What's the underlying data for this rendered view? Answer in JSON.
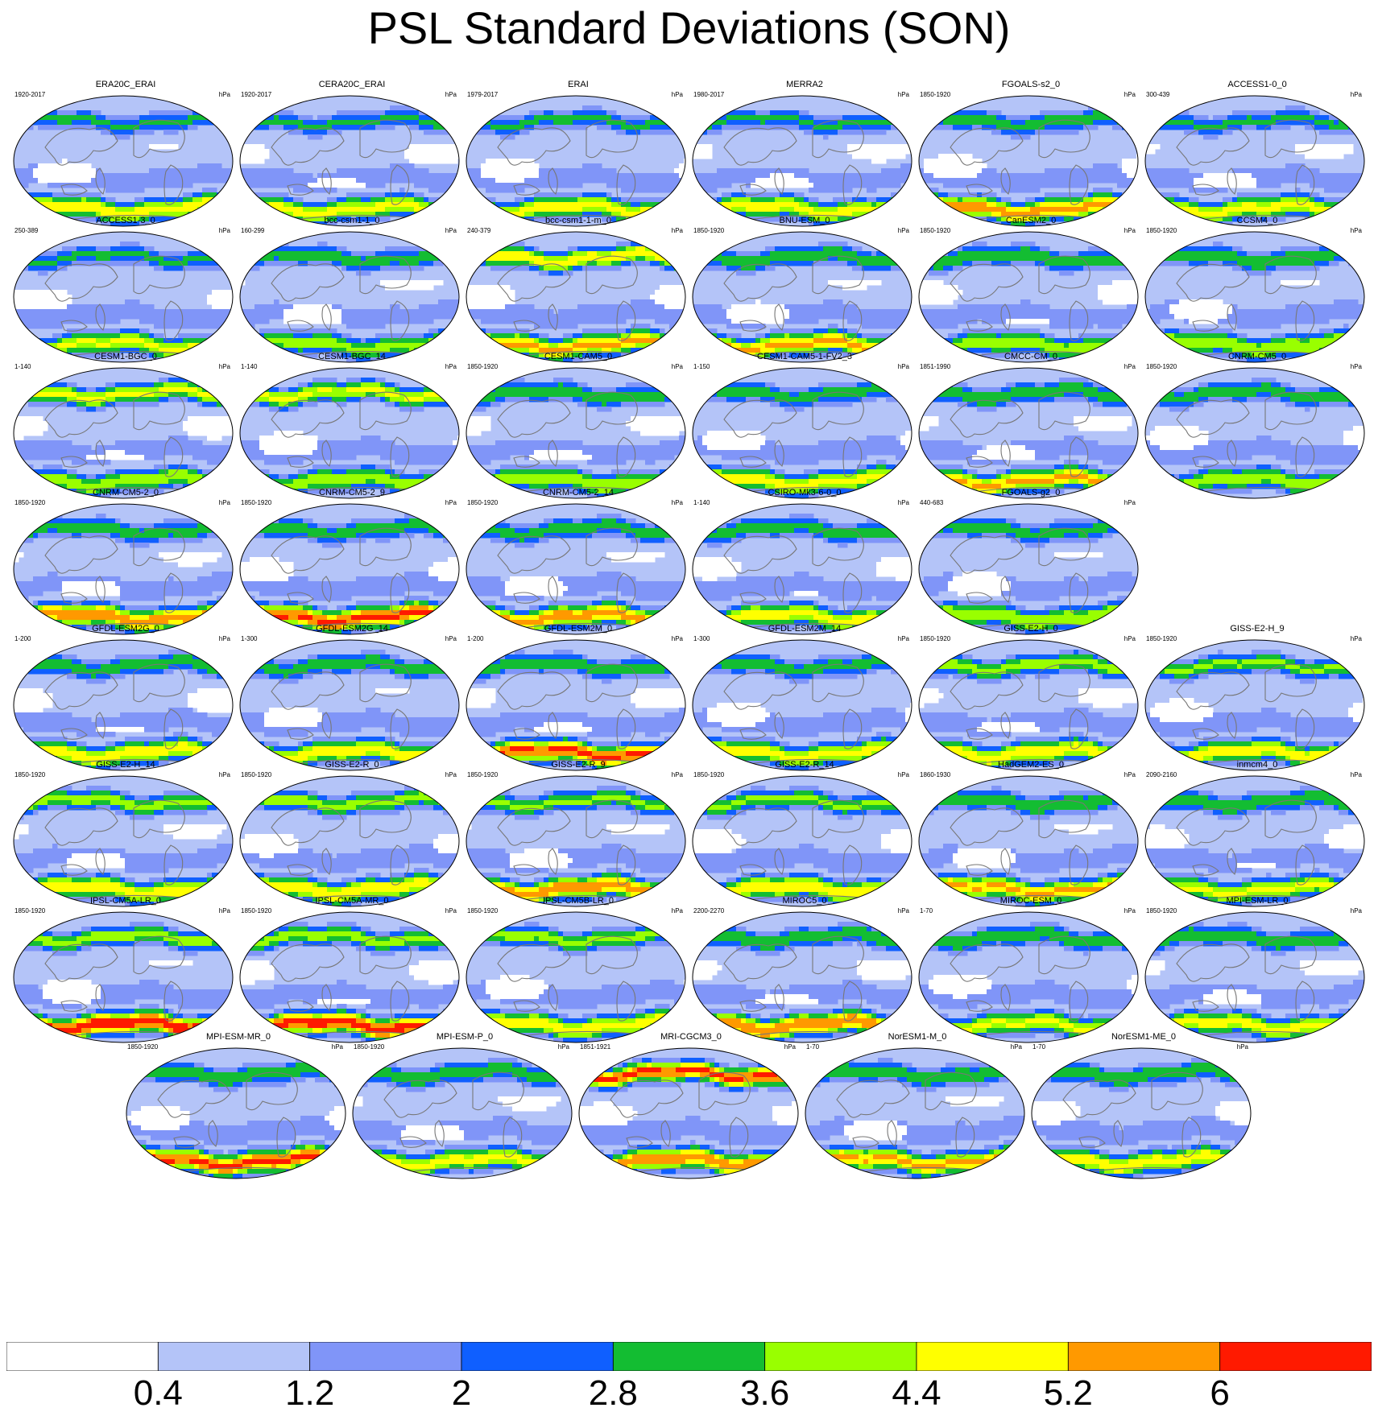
{
  "title": "PSL Standard Deviations (SON)",
  "chart_data": {
    "type": "heatmap",
    "title": "PSL Standard Deviations (SON)",
    "projection": "global robinson-like ellipse, continent outlines",
    "units": "hPa",
    "colorbar": {
      "levels": [
        "0.4",
        "1.2",
        "2",
        "2.8",
        "3.6",
        "4.4",
        "5.2",
        "6"
      ],
      "colors": [
        "#ffffff",
        "#b4c4f8",
        "#8095f8",
        "#0f5fff",
        "#13bd32",
        "#99ff00",
        "#ffff00",
        "#ff9900",
        "#ff1a00"
      ]
    },
    "panels": [
      {
        "name": "ERA20C_ERAI",
        "years": "1920-2017",
        "unit": "hPa",
        "south_max": 5.0,
        "north_max": 3.0
      },
      {
        "name": "CERA20C_ERAI",
        "years": "1920-2017",
        "unit": "hPa",
        "south_max": 4.8,
        "north_max": 3.0
      },
      {
        "name": "ERAI",
        "years": "1979-2017",
        "unit": "hPa",
        "south_max": 4.8,
        "north_max": 3.0
      },
      {
        "name": "MERRA2",
        "years": "1980-2017",
        "unit": "hPa",
        "south_max": 4.8,
        "north_max": 3.0
      },
      {
        "name": "FGOALS-s2_0",
        "years": "1850-1920",
        "unit": "hPa",
        "south_max": 5.6,
        "north_max": 3.4
      },
      {
        "name": "ACCESS1-0_0",
        "years": "300-439",
        "unit": "hPa",
        "south_max": 4.8,
        "north_max": 3.0
      },
      {
        "name": "ACCESS1-3_0",
        "years": "250-389",
        "unit": "hPa",
        "south_max": 4.6,
        "north_max": 3.0
      },
      {
        "name": "bcc-csm1-1_0",
        "years": "160-299",
        "unit": "hPa",
        "south_max": 4.0,
        "north_max": 3.4
      },
      {
        "name": "bcc-csm1-1-m_0",
        "years": "240-379",
        "unit": "hPa",
        "south_max": 5.4,
        "north_max": 5.0
      },
      {
        "name": "BNU-ESM_0",
        "years": "1850-1920",
        "unit": "hPa",
        "south_max": 5.4,
        "north_max": 3.6
      },
      {
        "name": "CanESM2_0",
        "years": "1850-1920",
        "unit": "hPa",
        "south_max": 4.2,
        "north_max": 3.6
      },
      {
        "name": "CCSM4_0",
        "years": "1850-1920",
        "unit": "hPa",
        "south_max": 4.4,
        "north_max": 3.6
      },
      {
        "name": "CESM1-BGC_0",
        "years": "1-140",
        "unit": "hPa",
        "south_max": 4.2,
        "north_max": 4.6
      },
      {
        "name": "CESM1-BGC_14",
        "years": "1-140",
        "unit": "hPa",
        "south_max": 4.2,
        "north_max": 4.6
      },
      {
        "name": "CESM1-CAM5_0",
        "years": "1850-1920",
        "unit": "hPa",
        "south_max": 4.4,
        "north_max": 3.6
      },
      {
        "name": "CESM1-CAM5-1-FV2_3",
        "years": "1-150",
        "unit": "hPa",
        "south_max": 4.8,
        "north_max": 3.4
      },
      {
        "name": "CMCC-CM_0",
        "years": "1851-1990",
        "unit": "hPa",
        "south_max": 5.4,
        "north_max": 3.6
      },
      {
        "name": "CNRM-CM5_0",
        "years": "1850-1920",
        "unit": "hPa",
        "south_max": 4.2,
        "north_max": 3.4
      },
      {
        "name": "CNRM-CM5-2_0",
        "years": "1850-1920",
        "unit": "hPa",
        "south_max": 5.8,
        "north_max": 3.4
      },
      {
        "name": "CNRM-CM5-2_9",
        "years": "1850-1920",
        "unit": "hPa",
        "south_max": 6.2,
        "north_max": 3.4
      },
      {
        "name": "CNRM-CM5-2_14",
        "years": "1850-1920",
        "unit": "hPa",
        "south_max": 5.6,
        "north_max": 3.4
      },
      {
        "name": "CSIRO-Mk3-6-0_0",
        "years": "1-140",
        "unit": "hPa",
        "south_max": 4.8,
        "north_max": 3.4
      },
      {
        "name": "FGOALS-g2_0",
        "years": "440-683",
        "unit": "hPa",
        "south_max": 4.4,
        "north_max": 3.4
      },
      {
        "name": "GFDL-ESM2G_0",
        "years": "1-200",
        "unit": "hPa",
        "south_max": 5.0,
        "north_max": 3.4
      },
      {
        "name": "GFDL-ESM2G_14",
        "years": "1-300",
        "unit": "hPa",
        "south_max": 5.0,
        "north_max": 3.4
      },
      {
        "name": "GFDL-ESM2M_0",
        "years": "1-200",
        "unit": "hPa",
        "south_max": 6.2,
        "north_max": 3.4
      },
      {
        "name": "GFDL-ESM2M_14",
        "years": "1-300",
        "unit": "hPa",
        "south_max": 4.8,
        "north_max": 3.4
      },
      {
        "name": "GISS-E2-H_0",
        "years": "1850-1920",
        "unit": "hPa",
        "south_max": 5.0,
        "north_max": 4.0
      },
      {
        "name": "GISS-E2-H_9",
        "years": "1850-1920",
        "unit": "hPa",
        "south_max": 5.0,
        "north_max": 3.8
      },
      {
        "name": "GISS-E2-H_14",
        "years": "1850-1920",
        "unit": "hPa",
        "south_max": 5.0,
        "north_max": 4.0
      },
      {
        "name": "GISS-E2-R_0",
        "years": "1850-1920",
        "unit": "hPa",
        "south_max": 5.2,
        "north_max": 4.0
      },
      {
        "name": "GISS-E2-R_9",
        "years": "1850-1920",
        "unit": "hPa",
        "south_max": 5.8,
        "north_max": 3.8
      },
      {
        "name": "GISS-E2-R_14",
        "years": "1850-1920",
        "unit": "hPa",
        "south_max": 5.2,
        "north_max": 3.8
      },
      {
        "name": "HadGEM2-ES_0",
        "years": "1860-1930",
        "unit": "hPa",
        "south_max": 5.4,
        "north_max": 3.6
      },
      {
        "name": "inmcm4_0",
        "years": "2090-2160",
        "unit": "hPa",
        "south_max": 4.6,
        "north_max": 3.6
      },
      {
        "name": "IPSL-CM5A-LR_0",
        "years": "1850-1920",
        "unit": "hPa",
        "south_max": 6.6,
        "north_max": 4.0
      },
      {
        "name": "IPSL-CM5A-MR_0",
        "years": "1850-1920",
        "unit": "hPa",
        "south_max": 6.4,
        "north_max": 4.0
      },
      {
        "name": "IPSL-CM5B-LR_0",
        "years": "1850-1920",
        "unit": "hPa",
        "south_max": 5.0,
        "north_max": 4.0
      },
      {
        "name": "MIROC5_0",
        "years": "2200-2270",
        "unit": "hPa",
        "south_max": 6.0,
        "north_max": 3.6
      },
      {
        "name": "MIROC-ESM_0",
        "years": "1-70",
        "unit": "hPa",
        "south_max": 4.6,
        "north_max": 3.6
      },
      {
        "name": "MPI-ESM-LR_0",
        "years": "1850-1920",
        "unit": "hPa",
        "south_max": 4.8,
        "north_max": 3.6
      },
      {
        "name": "MPI-ESM-MR_0",
        "years": "1850-1920",
        "unit": "hPa",
        "south_max": 6.2,
        "north_max": 3.6
      },
      {
        "name": "MPI-ESM-P_0",
        "years": "1850-1920",
        "unit": "hPa",
        "south_max": 4.8,
        "north_max": 3.6
      },
      {
        "name": "MRI-CGCM3_0",
        "years": "1851-1921",
        "unit": "hPa",
        "south_max": 5.8,
        "north_max": 6.2
      },
      {
        "name": "NorESM1-M_0",
        "years": "1-70",
        "unit": "hPa",
        "south_max": 5.4,
        "north_max": 3.6
      },
      {
        "name": "NorESM1-ME_0",
        "years": "1-70",
        "unit": "hPa",
        "south_max": 5.0,
        "north_max": 3.6
      }
    ]
  }
}
